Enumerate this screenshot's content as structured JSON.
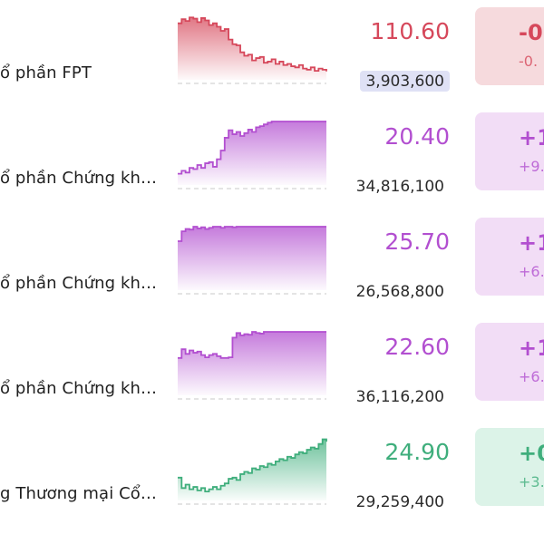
{
  "colors": {
    "down": "#d6485b",
    "ceiling": "#b24fd0",
    "up": "#3fae7c",
    "down_bg": "#f6dadd",
    "ceiling_bg": "#f2ddf6",
    "up_bg": "#dcf3e8",
    "volume_highlight": "#dfe1f5"
  },
  "rows": [
    {
      "name": "ổ phần FPT",
      "price": "110.60",
      "volume": "3,903,600",
      "change": "-0",
      "change_pct": "-0.",
      "status": "down",
      "spark": [
        0.88,
        0.95,
        0.92,
        0.98,
        0.96,
        0.9,
        0.97,
        0.93,
        0.85,
        0.88,
        0.82,
        0.75,
        0.78,
        0.6,
        0.52,
        0.5,
        0.38,
        0.32,
        0.34,
        0.24,
        0.28,
        0.3,
        0.2,
        0.22,
        0.26,
        0.18,
        0.22,
        0.16,
        0.18,
        0.14,
        0.12,
        0.16,
        0.1,
        0.08,
        0.12,
        0.06,
        0.1,
        0.08,
        0.05
      ]
    },
    {
      "name": "ổ phần Chứng kh…",
      "price": "20.40",
      "volume": "34,816,100",
      "change": "+1",
      "change_pct": "+9.",
      "status": "ceiling",
      "spark": [
        0.1,
        0.15,
        0.12,
        0.2,
        0.18,
        0.25,
        0.2,
        0.28,
        0.3,
        0.22,
        0.35,
        0.5,
        0.72,
        0.85,
        0.78,
        0.82,
        0.75,
        0.8,
        0.86,
        0.82,
        0.9,
        0.92,
        0.95,
        0.98,
        1.0,
        1.0,
        1.0,
        1.0,
        1.0,
        1.0,
        1.0,
        1.0,
        1.0,
        1.0,
        1.0,
        1.0,
        1.0,
        1.0,
        1.0
      ]
    },
    {
      "name": "ổ phần Chứng kh…",
      "price": "25.70",
      "volume": "26,568,800",
      "change": "+1",
      "change_pct": "+6.",
      "status": "ceiling",
      "spark": [
        0.75,
        0.92,
        0.96,
        0.95,
        1.0,
        0.97,
        0.99,
        0.96,
        0.98,
        1.0,
        1.0,
        0.98,
        1.0,
        1.0,
        0.99,
        1.0,
        1.0,
        1.0,
        1.0,
        1.0,
        1.0,
        1.0,
        1.0,
        1.0,
        1.0,
        1.0,
        1.0,
        1.0,
        1.0,
        1.0,
        1.0,
        1.0,
        1.0,
        1.0,
        1.0,
        1.0,
        1.0,
        1.0,
        1.0
      ]
    },
    {
      "name": "ổ phần Chứng kh…",
      "price": "22.60",
      "volume": "36,116,200",
      "change": "+1",
      "change_pct": "+6.",
      "status": "ceiling",
      "spark": [
        0.55,
        0.7,
        0.62,
        0.68,
        0.64,
        0.66,
        0.6,
        0.56,
        0.6,
        0.62,
        0.58,
        0.55,
        0.55,
        0.56,
        0.9,
        0.98,
        0.94,
        0.96,
        0.95,
        1.0,
        0.98,
        0.97,
        1.0,
        1.0,
        1.0,
        1.0,
        1.0,
        1.0,
        1.0,
        1.0,
        1.0,
        1.0,
        1.0,
        1.0,
        1.0,
        1.0,
        1.0,
        1.0,
        1.0
      ]
    },
    {
      "name": "g Thương mại Cổ…",
      "price": "24.90",
      "volume": "29,259,400",
      "change": "+0",
      "change_pct": "+3.",
      "status": "up",
      "spark": [
        0.3,
        0.12,
        0.18,
        0.1,
        0.14,
        0.08,
        0.12,
        0.06,
        0.1,
        0.14,
        0.1,
        0.16,
        0.2,
        0.28,
        0.3,
        0.26,
        0.36,
        0.4,
        0.38,
        0.46,
        0.44,
        0.5,
        0.48,
        0.54,
        0.52,
        0.58,
        0.62,
        0.6,
        0.66,
        0.64,
        0.7,
        0.74,
        0.72,
        0.78,
        0.82,
        0.8,
        0.88,
        0.96,
        0.92
      ]
    }
  ]
}
